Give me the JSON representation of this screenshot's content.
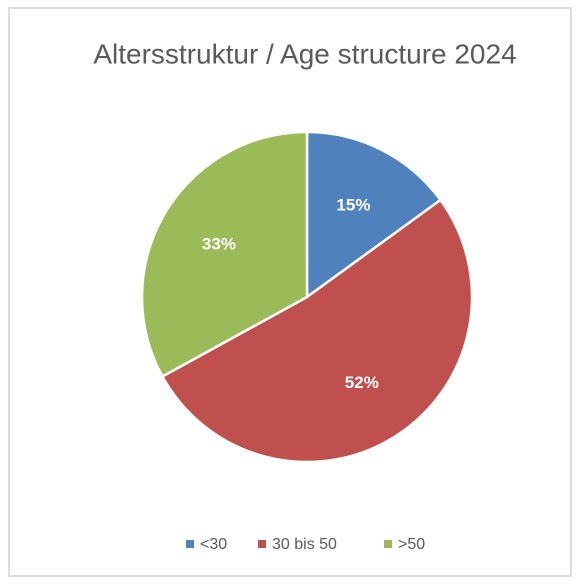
{
  "chart_data": {
    "type": "pie",
    "title": "Altersstruktur / Age structure 2024",
    "categories": [
      "<30",
      "30 bis 50",
      ">50"
    ],
    "values": [
      15,
      52,
      33
    ],
    "value_labels": [
      "15%",
      "52%",
      "33%"
    ],
    "colors": [
      "#4f81bd",
      "#c0504d",
      "#9bbb59"
    ],
    "legend": "bottom"
  }
}
